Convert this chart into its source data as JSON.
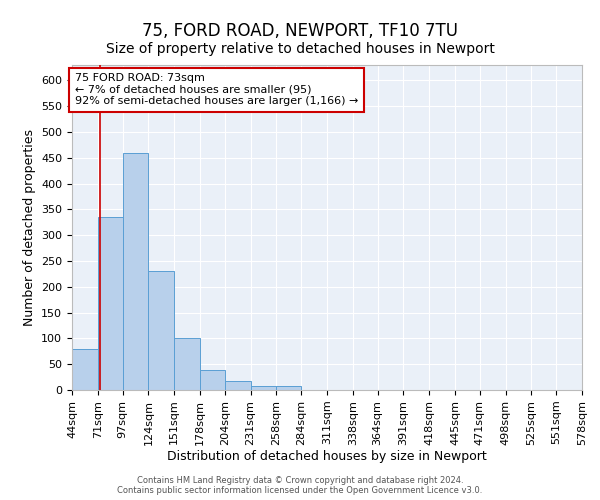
{
  "title": "75, FORD ROAD, NEWPORT, TF10 7TU",
  "subtitle": "Size of property relative to detached houses in Newport",
  "xlabel": "Distribution of detached houses by size in Newport",
  "ylabel": "Number of detached properties",
  "bin_edges": [
    44,
    71,
    97,
    124,
    151,
    178,
    204,
    231,
    258,
    284,
    311,
    338,
    364,
    391,
    418,
    445,
    471,
    498,
    525,
    551,
    578
  ],
  "bar_heights": [
    80,
    335,
    460,
    230,
    100,
    38,
    18,
    8,
    7,
    0,
    0,
    0,
    0,
    0,
    0,
    0,
    0,
    0,
    0,
    0
  ],
  "bar_color": "#b8d0eb",
  "bar_edge_color": "#5a9fd4",
  "red_line_x": 73,
  "red_line_color": "#cc0000",
  "annotation_text": "75 FORD ROAD: 73sqm\n← 7% of detached houses are smaller (95)\n92% of semi-detached houses are larger (1,166) →",
  "annotation_box_color": "white",
  "annotation_box_edge_color": "#cc0000",
  "ylim": [
    0,
    630
  ],
  "yticks": [
    0,
    50,
    100,
    150,
    200,
    250,
    300,
    350,
    400,
    450,
    500,
    550,
    600
  ],
  "background_color": "#eaf0f8",
  "grid_color": "white",
  "footer_text": "Contains HM Land Registry data © Crown copyright and database right 2024.\nContains public sector information licensed under the Open Government Licence v3.0.",
  "title_fontsize": 12,
  "subtitle_fontsize": 10,
  "xlabel_fontsize": 9,
  "ylabel_fontsize": 9,
  "tick_fontsize": 8,
  "annotation_fontsize": 8,
  "footer_fontsize": 6
}
